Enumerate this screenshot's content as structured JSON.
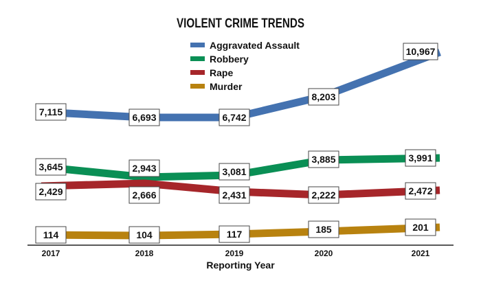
{
  "chart_data": {
    "type": "line",
    "title": "VIOLENT CRIME TRENDS",
    "xlabel": "Reporting Year",
    "ylabel": "",
    "categories": [
      "2017",
      "2018",
      "2019",
      "2020",
      "2021"
    ],
    "grid": false,
    "legend_position": "top-center",
    "series": [
      {
        "name": "Aggravated Assault",
        "color": "#4472b0",
        "values": [
          7115,
          6693,
          6742,
          8203,
          10967
        ],
        "labels": [
          "7,115",
          "6,693",
          "6,742",
          "8,203",
          "10,967"
        ]
      },
      {
        "name": "Robbery",
        "color": "#0a8f55",
        "values": [
          3645,
          2943,
          3081,
          3885,
          3991
        ],
        "labels": [
          "3,645",
          "2,943",
          "3,081",
          "3,885",
          "3,991"
        ]
      },
      {
        "name": "Rape",
        "color": "#a6262a",
        "values": [
          2429,
          2666,
          2431,
          2222,
          2472
        ],
        "labels": [
          "2,429",
          "2,666",
          "2,431",
          "2,222",
          "2,472"
        ]
      },
      {
        "name": "Murder",
        "color": "#b8820f",
        "values": [
          114,
          104,
          117,
          185,
          201
        ],
        "labels": [
          "114",
          "104",
          "117",
          "185",
          "201"
        ]
      }
    ]
  }
}
